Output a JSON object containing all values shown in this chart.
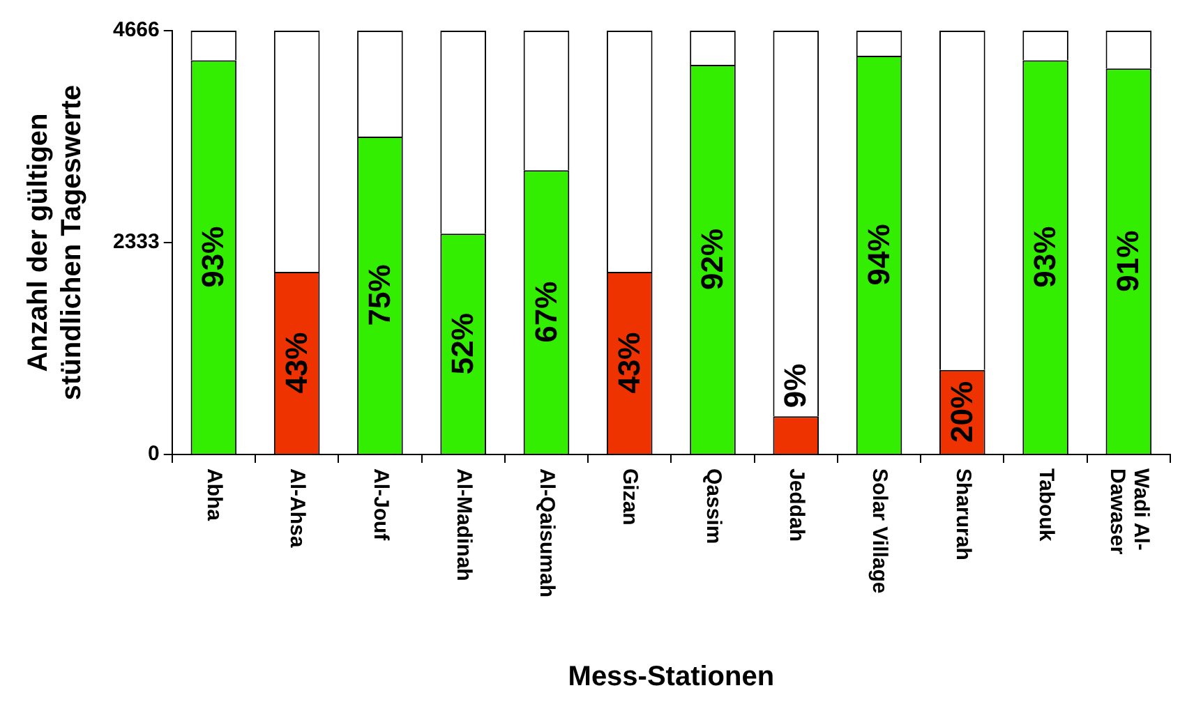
{
  "chart_data": {
    "type": "bar",
    "stacked": true,
    "xlabel": "Mess-Stationen",
    "ylabel": "Anzahl der gültigen\nstündlichen Tageswerte",
    "categories": [
      "Abha",
      "Al-Ahsa",
      "Al-Jouf",
      "Al-Madinah",
      "Al-Qaisumah",
      "Gizan",
      "Qassim",
      "Jeddah",
      "Solar Village",
      "Sharurah",
      "Tabouk",
      "Wadi Al-Dawaser"
    ],
    "series": [
      {
        "colors": [
          "#33ee00",
          "#ee3300",
          "#33ee00",
          "#33ee00",
          "#33ee00",
          "#ee3300",
          "#33ee00",
          "#ee3300",
          "#33ee00",
          "#ee3300",
          "#33ee00",
          "#33ee00"
        ],
        "values": [
          4340,
          2010,
          3500,
          2430,
          3130,
          2010,
          4290,
          420,
          4390,
          930,
          4340,
          4250
        ]
      },
      {
        "color": "#ffffff",
        "values": [
          326,
          2656,
          1166,
          2236,
          1536,
          2656,
          376,
          4246,
          276,
          3736,
          326,
          416
        ]
      }
    ],
    "annotations": [
      "93%",
      "43%",
      "75%",
      "52%",
      "67%",
      "43%",
      "92%",
      "9%",
      "94%",
      "20%",
      "93%",
      "91%"
    ],
    "ylim": [
      0,
      4666
    ],
    "yticks": [
      0,
      2333,
      4666
    ],
    "grid": false,
    "legend": false
  }
}
